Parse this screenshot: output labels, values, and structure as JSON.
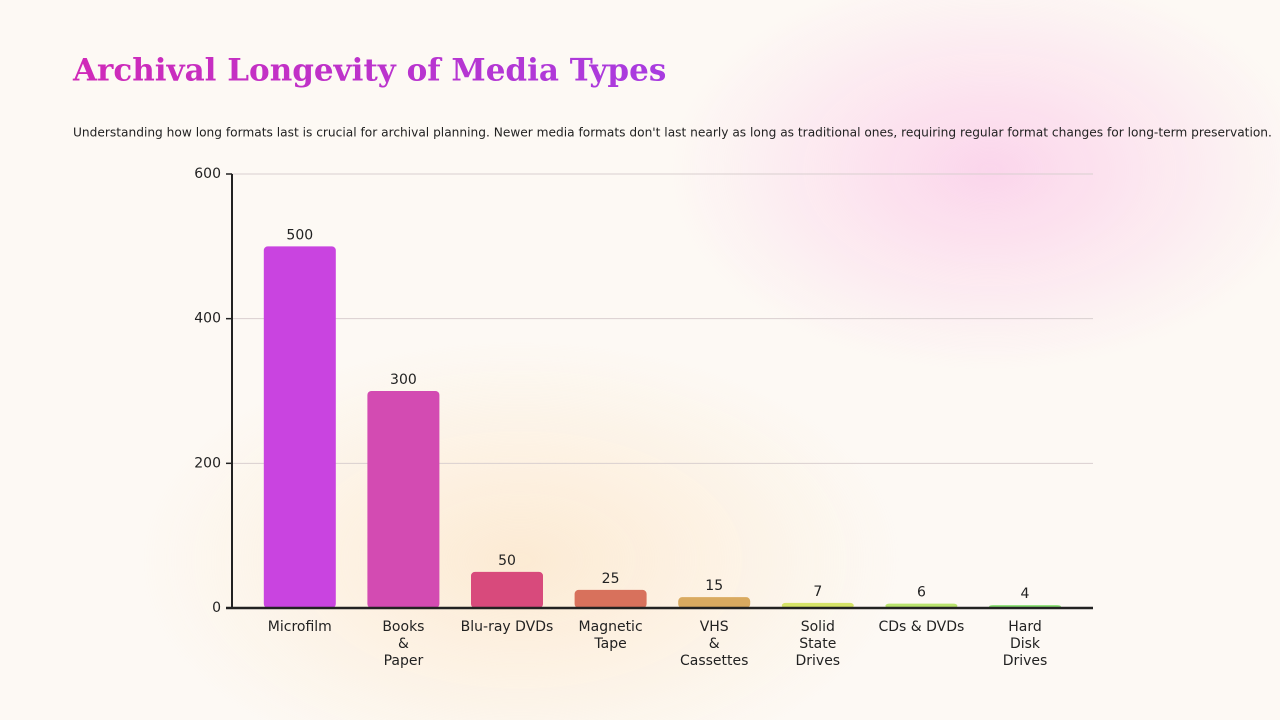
{
  "chart_data": {
    "type": "bar",
    "title": "Archival Longevity of Media Types",
    "subtitle": "Understanding how long formats last is crucial for archival planning. Newer media formats don't last nearly as long as traditional ones, requiring regular format changes for long-term preservation.",
    "categories": [
      [
        "Microfilm"
      ],
      [
        "Books",
        "&",
        "Paper"
      ],
      [
        "Blu-ray DVDs"
      ],
      [
        "Magnetic",
        "Tape"
      ],
      [
        "VHS",
        "&",
        "Cassettes"
      ],
      [
        "Solid",
        "State",
        "Drives"
      ],
      [
        "CDs & DVDs"
      ],
      [
        "Hard",
        "Disk",
        "Drives"
      ]
    ],
    "values": [
      500,
      300,
      50,
      25,
      15,
      7,
      6,
      4
    ],
    "colors": [
      "#c944e0",
      "#d34bb2",
      "#d84a7c",
      "#d8715c",
      "#d9aa60",
      "#d6e468",
      "#b9e46e",
      "#86e070"
    ],
    "ylim": [
      0,
      600
    ],
    "yticks": [
      0,
      200,
      400,
      600
    ],
    "grid": true
  }
}
